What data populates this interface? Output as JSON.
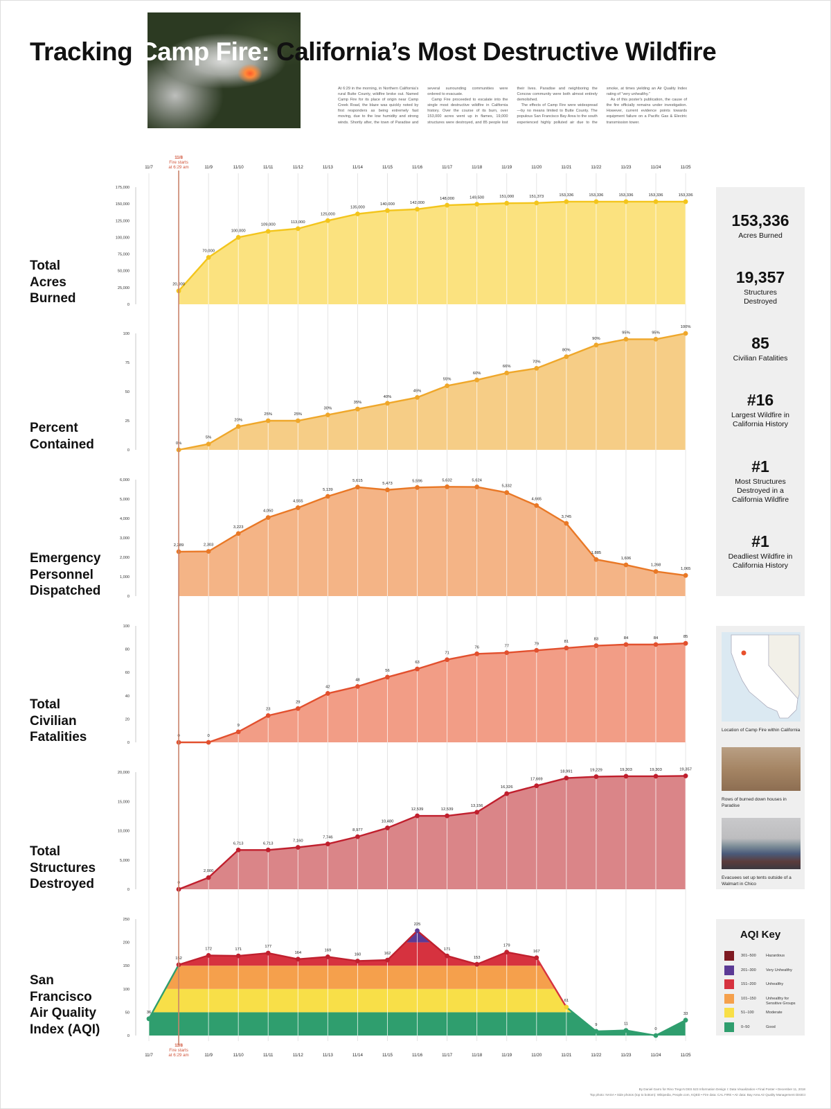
{
  "header": {
    "title_parts": [
      "Tracking ",
      "Camp Fire:",
      " California’s Most Destructive Wildfire"
    ],
    "intro": [
      "At 6:29 in the morning, in Northern California's rural Butte County, wildfire broke out. Named Camp Fire for its place of origin near Camp Creek Road, the blaze was quickly noted by first responders as being extremely fast moving, due to the low humidity and strong winds. Shortly after, the town of Paradise and several surrounding communities were ordered to evacuate.",
      "Camp Fire proceeded to escalate into the single most destructive wildfire in California history. Over the course of its burn, over 153,000 acres went up in flames, 19,000 structures were destroyed, and 85 people lost their lives. Paradise and neighboring the Concow community were both almost entirely demolished.",
      "The effects of Camp Fire were widespread—by no means limited to Butte County. The populous San Francisco Bay Area to the south experienced highly polluted air due to the smoke, at times yielding an Air Quality Index rating of “very unhealthy.”",
      "As of this poster's publication, the cause of the fire officially remains under investigation. However, current evidence points towards equipment failure on a Pacific Gas & Electric transmission tower."
    ]
  },
  "dates": [
    "11/7",
    "11/8",
    "11/9",
    "11/10",
    "11/11",
    "11/12",
    "11/13",
    "11/14",
    "11/15",
    "11/16",
    "11/17",
    "11/18",
    "11/19",
    "11/20",
    "11/21",
    "11/22",
    "11/23",
    "11/24",
    "11/25"
  ],
  "fire_start": {
    "date": "11/8",
    "note_1": "Fire starts",
    "note_2": "at 6:29 am",
    "color": "#d0543a"
  },
  "chart_data": [
    {
      "type": "area",
      "title": "Total\nAcres\nBurned",
      "x_start": "11/8",
      "ylim": [
        0,
        175000
      ],
      "yticks": [
        "0",
        "25,000",
        "50,000",
        "75,000",
        "100,000",
        "125,000",
        "150,000",
        "175,000"
      ],
      "ytick_values": [
        0,
        25000,
        50000,
        75000,
        100000,
        125000,
        150000,
        175000
      ],
      "values": [
        20000,
        70000,
        100000,
        109000,
        113000,
        125000,
        135000,
        140000,
        142000,
        148000,
        149500,
        151000,
        151373,
        153336,
        153336,
        153336,
        153336,
        153336
      ],
      "labels": [
        "20,000",
        "70,000",
        "100,000",
        "109,000",
        "113,000",
        "125,000",
        "135,000",
        "140,000",
        "142,000",
        "148,000",
        "149,500",
        "151,000",
        "151,373",
        "153,336",
        "153,336",
        "153,336",
        "153,336",
        "153,336"
      ],
      "fill": "#fbe27f",
      "line": "#f3c51c"
    },
    {
      "type": "area",
      "title": "Percent\nContained",
      "x_start": "11/8",
      "ylim": [
        0,
        100
      ],
      "yticks": [
        "0",
        "25",
        "50",
        "75",
        "100"
      ],
      "ytick_values": [
        0,
        25,
        50,
        75,
        100
      ],
      "values": [
        0,
        5,
        20,
        25,
        25,
        30,
        35,
        40,
        45,
        55,
        60,
        66,
        70,
        80,
        90,
        95,
        95,
        100
      ],
      "labels": [
        "0%",
        "5%",
        "20%",
        "25%",
        "25%",
        "30%",
        "35%",
        "40%",
        "45%",
        "55%",
        "60%",
        "66%",
        "70%",
        "80%",
        "90%",
        "95%",
        "95%",
        "100%"
      ],
      "fill": "#f6cd86",
      "line": "#efa72a"
    },
    {
      "type": "area",
      "title": "Emergency\nPersonnel\nDispatched",
      "x_start": "11/8",
      "ylim": [
        0,
        6000
      ],
      "yticks": [
        "0",
        "1,000",
        "2,000",
        "3,000",
        "4,000",
        "5,000",
        "6,000"
      ],
      "ytick_values": [
        0,
        1000,
        2000,
        3000,
        4000,
        5000,
        6000
      ],
      "values": [
        2289,
        2303,
        3223,
        4050,
        4555,
        5139,
        5615,
        5473,
        5596,
        5632,
        5624,
        5332,
        4665,
        3745,
        1885,
        1606,
        1268,
        1065
      ],
      "labels": [
        "2,289",
        "2,303",
        "3,223",
        "4,050",
        "4,555",
        "5,139",
        "5,615",
        "5,473",
        "5,596",
        "5,632",
        "5,624",
        "5,332",
        "4,665",
        "3,745",
        "1,885",
        "1,606",
        "1,268",
        "1,065"
      ],
      "fill": "#f4b486",
      "line": "#e97826"
    },
    {
      "type": "area",
      "title": "Total\nCivilian\nFatalities",
      "x_start": "11/8",
      "ylim": [
        0,
        100
      ],
      "yticks": [
        "0",
        "20",
        "40",
        "60",
        "80",
        "100"
      ],
      "ytick_values": [
        0,
        20,
        40,
        60,
        80,
        100
      ],
      "values": [
        0,
        0,
        9,
        23,
        29,
        42,
        48,
        56,
        63,
        71,
        76,
        77,
        79,
        81,
        83,
        84,
        84,
        85
      ],
      "labels": [
        "0",
        "0",
        "9",
        "23",
        "29",
        "42",
        "48",
        "56",
        "63",
        "71",
        "76",
        "77",
        "79",
        "81",
        "83",
        "84",
        "84",
        "85"
      ],
      "fill": "#f29d86",
      "line": "#e2502e"
    },
    {
      "type": "area",
      "title": "Total\nStructures\nDestroyed",
      "x_start": "11/8",
      "ylim": [
        0,
        20000
      ],
      "yticks": [
        "0",
        "5,000",
        "10,000",
        "15,000",
        "20,000"
      ],
      "ytick_values": [
        0,
        5000,
        10000,
        15000,
        20000
      ],
      "values": [
        0,
        2000,
        6713,
        6713,
        7160,
        7746,
        8977,
        10480,
        12539,
        12539,
        13156,
        16326,
        17669,
        18991,
        19229,
        19303,
        19303,
        19357
      ],
      "labels": [
        "0",
        "2,000",
        "6,713",
        "6,713",
        "7,160",
        "7,746",
        "8,977",
        "10,480",
        "12,539",
        "12,539",
        "13,156",
        "16,326",
        "17,669",
        "18,991",
        "19,229",
        "19,303",
        "19,303",
        "19,357"
      ],
      "fill": "#da8588",
      "line": "#c01f2d"
    },
    {
      "type": "area",
      "title": "San\nFrancisco\nAir Quality\nIndex (AQI)",
      "x_start": "11/7",
      "ylim": [
        0,
        250
      ],
      "yticks": [
        "0",
        "50",
        "100",
        "150",
        "200",
        "250"
      ],
      "ytick_values": [
        0,
        50,
        100,
        150,
        200,
        250
      ],
      "values": [
        36,
        152,
        172,
        171,
        177,
        164,
        169,
        160,
        162,
        225,
        171,
        153,
        179,
        167,
        61,
        9,
        11,
        0,
        33
      ],
      "labels": [
        "36",
        "152",
        "172",
        "171",
        "177",
        "164",
        "169",
        "160",
        "162",
        "225",
        "171",
        "153",
        "179",
        "167",
        "61",
        "9",
        "11",
        "0",
        "33"
      ],
      "bands": [
        {
          "min": 0,
          "max": 50,
          "color": "#2f9e6e"
        },
        {
          "min": 50,
          "max": 100,
          "color": "#f8df48"
        },
        {
          "min": 100,
          "max": 150,
          "color": "#f5a04c"
        },
        {
          "min": 150,
          "max": 200,
          "color": "#d6323f"
        },
        {
          "min": 200,
          "max": 300,
          "color": "#5b3a95"
        }
      ]
    }
  ],
  "stats": [
    {
      "value": "153,336",
      "label": "Acres Burned"
    },
    {
      "value": "19,357",
      "label": "Structures\nDestroyed"
    },
    {
      "value": "85",
      "label": "Civilian Fatalities"
    },
    {
      "value": "#16",
      "label": "Largest Wildfire in\nCalifornia History"
    },
    {
      "value": "#1",
      "label": "Most Structures\nDestroyed in a\nCalifornia Wildfire"
    },
    {
      "value": "#1",
      "label": "Deadliest Wildfire in\nCalifornia History"
    }
  ],
  "photos": [
    {
      "caption": "Location of Camp Fire within California"
    },
    {
      "caption": "Rows of burned down houses in Paradise"
    },
    {
      "caption": "Evacuees set up tents outside of a Walmart in Chico"
    }
  ],
  "aqi_key": {
    "title": "AQI Key",
    "rows": [
      {
        "range": "301–500",
        "name": "Hazardous",
        "color": "#7e1a22"
      },
      {
        "range": "201–300",
        "name": "Very Unhealthy",
        "color": "#5b3a95"
      },
      {
        "range": "151–200",
        "name": "Unhealthy",
        "color": "#d6323f"
      },
      {
        "range": "101–150",
        "name": "Unhealthy for\nSensitive Groups",
        "color": "#f5a04c"
      },
      {
        "range": "51–100",
        "name": "Moderate",
        "color": "#f8df48"
      },
      {
        "range": "0–50",
        "name": "Good",
        "color": "#2f9e6e"
      }
    ]
  },
  "footer": {
    "line_1": "By Daniel Garro for Rino Trego's DES 523 Information Design I: Data Visualization • Final Poster • December 11, 2018",
    "line_2": "Top photo: NASA • Side photos (top to bottom): Wikipedia, People.com, KQED • Fire data: CAL FIRE • Air data: Bay Area Air Quality Management District"
  }
}
